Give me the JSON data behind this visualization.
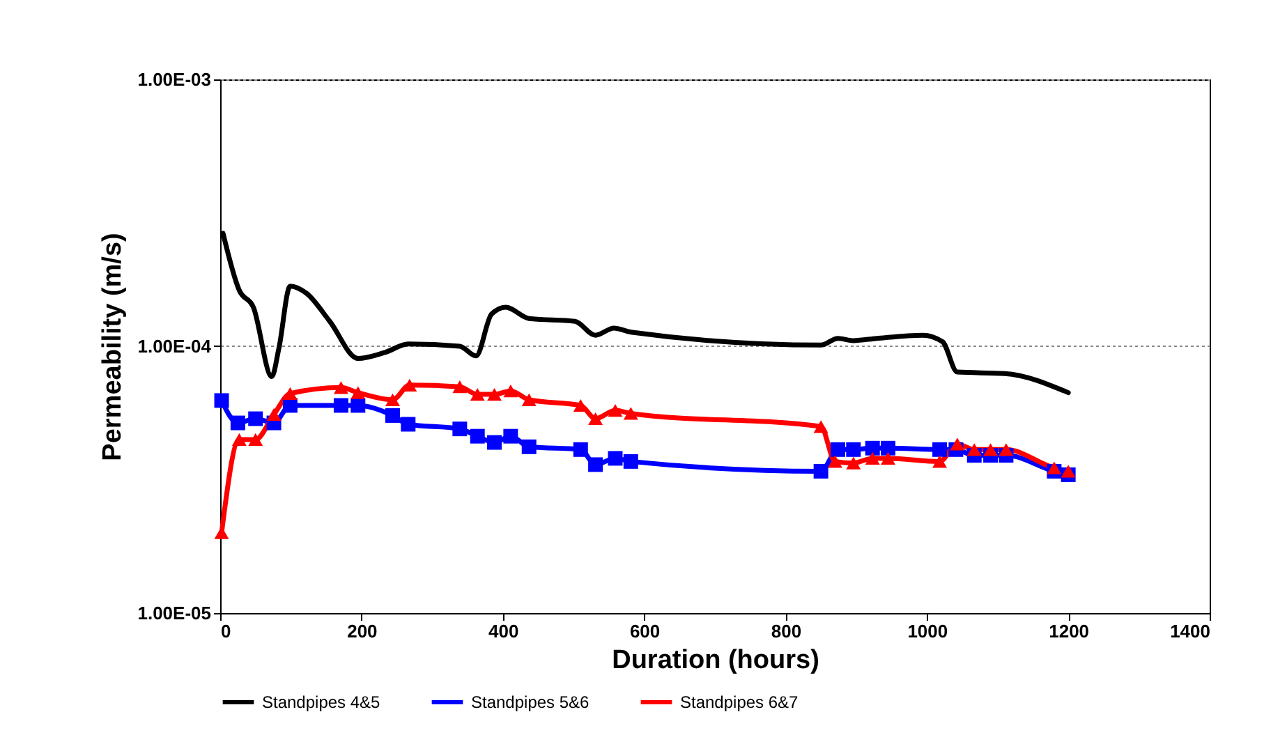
{
  "chart_data": {
    "type": "line",
    "xlabel": "Duration (hours)",
    "ylabel": "Permeability (m/s)",
    "log": true,
    "grid": "y",
    "legend": "bottom",
    "xlim": [
      0,
      1400
    ],
    "xticks": [
      0,
      200,
      400,
      600,
      800,
      1000,
      1200,
      1400
    ],
    "ylim": [
      1e-05,
      0.001
    ],
    "yticks": [
      {
        "value": 1e-05,
        "label": "1.00E-05"
      },
      {
        "value": 0.0001,
        "label": "1.00E-04"
      },
      {
        "value": 0.001,
        "label": "1.00E-03"
      }
    ],
    "series": [
      {
        "name": "Standpipes 4&5",
        "color": "#000000",
        "marker": "none",
        "x": [
          4,
          27,
          47,
          73,
          83,
          99,
          122,
          155,
          195,
          234,
          266,
          339,
          362,
          384,
          404,
          437,
          502,
          531,
          557,
          581,
          850,
          874,
          896,
          929,
          994,
          1022,
          1043,
          1110,
          1200
        ],
        "values": [
          0.000265,
          0.000162,
          0.00014,
          7.7e-05,
          9.8e-05,
          0.000168,
          0.000158,
          0.000124,
          9e-05,
          9.5e-05,
          0.000102,
          0.0001,
          9.2e-05,
          0.000132,
          0.00014,
          0.000127,
          0.000124,
          0.00011,
          0.000117,
          0.000113,
          0.000101,
          0.000107,
          0.000105,
          0.000107,
          0.00011,
          0.000104,
          8e-05,
          7.9e-05,
          6.7e-05
        ]
      },
      {
        "name": "Standpipes 5&6",
        "color": "#0000ff",
        "marker": "square",
        "x": [
          2,
          25,
          50,
          76,
          99,
          171,
          195,
          244,
          266,
          339,
          364,
          388,
          411,
          437,
          510,
          531,
          559,
          581,
          850,
          874,
          896,
          923,
          945,
          1018,
          1041,
          1067,
          1090,
          1112,
          1180,
          1200
        ],
        "values": [
          6.26e-05,
          5.16e-05,
          5.35e-05,
          5.16e-05,
          6e-05,
          6e-05,
          6e-05,
          5.5e-05,
          5.1e-05,
          4.9e-05,
          4.6e-05,
          4.36e-05,
          4.6e-05,
          4.2e-05,
          4.1e-05,
          3.6e-05,
          3.8e-05,
          3.7e-05,
          3.4e-05,
          4.1e-05,
          4.1e-05,
          4.15e-05,
          4.15e-05,
          4.1e-05,
          4.1e-05,
          3.9e-05,
          3.9e-05,
          3.9e-05,
          3.4e-05,
          3.3e-05
        ]
      },
      {
        "name": "Standpipes 6&7",
        "color": "#ff0000",
        "marker": "triangle",
        "x": [
          2,
          27,
          50,
          76,
          99,
          171,
          195,
          244,
          268,
          339,
          364,
          388,
          411,
          437,
          510,
          531,
          559,
          581,
          850,
          870,
          896,
          923,
          945,
          1018,
          1043,
          1067,
          1090,
          1112,
          1180,
          1200
        ],
        "values": [
          2e-05,
          4.47e-05,
          4.47e-05,
          5.55e-05,
          6.65e-05,
          7e-05,
          6.7e-05,
          6.3e-05,
          7.15e-05,
          7.05e-05,
          6.6e-05,
          6.6e-05,
          6.8e-05,
          6.3e-05,
          6e-05,
          5.35e-05,
          5.75e-05,
          5.6e-05,
          5e-05,
          3.7e-05,
          3.65e-05,
          3.8e-05,
          3.8e-05,
          3.7e-05,
          4.3e-05,
          4.1e-05,
          4.1e-05,
          4.1e-05,
          3.5e-05,
          3.4e-05
        ]
      }
    ]
  }
}
